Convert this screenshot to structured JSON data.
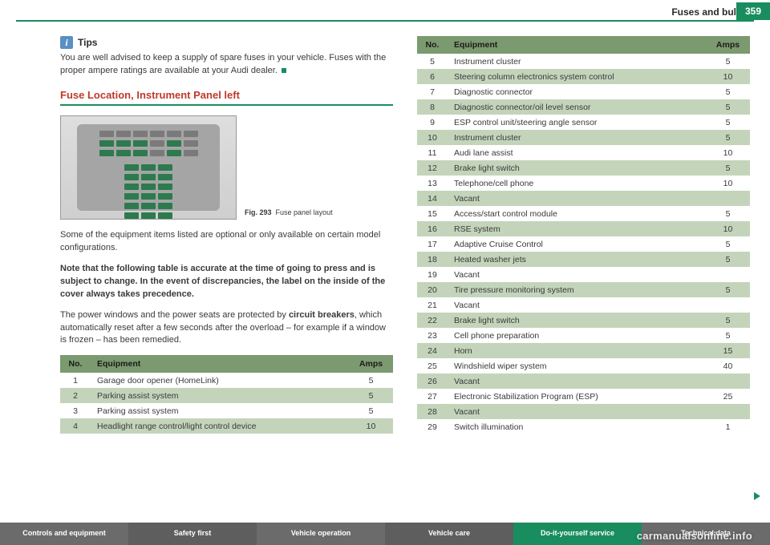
{
  "header": {
    "title": "Fuses and bulbs",
    "page_number": "359"
  },
  "tips": {
    "icon_letter": "i",
    "label": "Tips",
    "body": "You are well advised to keep a supply of spare fuses in your vehicle. Fuses with the proper ampere ratings are available at your Audi dealer."
  },
  "section_heading": "Fuse Location, Instrument Panel left",
  "figure_caption_bold": "Fig. 293",
  "figure_caption_text": "Fuse panel layout",
  "body_paragraphs": {
    "p1": "Some of the equipment items listed are optional or only available on certain model configurations.",
    "p2_bold": "Note that the following table is accurate at the time of going to press and is subject to change. In the event of discrepancies, the label on the inside of the cover always takes precedence.",
    "p3a": "The power windows and the power seats are protected by ",
    "p3b_bold": "circuit breakers",
    "p3c": ", which automatically reset after a few seconds after the overload – for example if a window is frozen – has been remedied."
  },
  "table_headers": {
    "no": "No.",
    "equipment": "Equipment",
    "amps": "Amps"
  },
  "left_table_rows": [
    {
      "no": "1",
      "equipment": "Garage door opener (HomeLink)",
      "amps": "5"
    },
    {
      "no": "2",
      "equipment": "Parking assist system",
      "amps": "5"
    },
    {
      "no": "3",
      "equipment": "Parking assist system",
      "amps": "5"
    },
    {
      "no": "4",
      "equipment": "Headlight range control/light control device",
      "amps": "10"
    }
  ],
  "right_table_rows": [
    {
      "no": "5",
      "equipment": "Instrument cluster",
      "amps": "5"
    },
    {
      "no": "6",
      "equipment": "Steering column electronics system control",
      "amps": "10"
    },
    {
      "no": "7",
      "equipment": "Diagnostic connector",
      "amps": "5"
    },
    {
      "no": "8",
      "equipment": "Diagnostic connector/oil level sensor",
      "amps": "5"
    },
    {
      "no": "9",
      "equipment": "ESP control unit/steering angle sensor",
      "amps": "5"
    },
    {
      "no": "10",
      "equipment": "Instrument cluster",
      "amps": "5"
    },
    {
      "no": "11",
      "equipment": "Audi lane assist",
      "amps": "10"
    },
    {
      "no": "12",
      "equipment": "Brake light switch",
      "amps": "5"
    },
    {
      "no": "13",
      "equipment": "Telephone/cell phone",
      "amps": "10"
    },
    {
      "no": "14",
      "equipment": "Vacant",
      "amps": ""
    },
    {
      "no": "15",
      "equipment": "Access/start control module",
      "amps": "5"
    },
    {
      "no": "16",
      "equipment": "RSE system",
      "amps": "10"
    },
    {
      "no": "17",
      "equipment": "Adaptive Cruise Control",
      "amps": "5"
    },
    {
      "no": "18",
      "equipment": "Heated washer jets",
      "amps": "5"
    },
    {
      "no": "19",
      "equipment": "Vacant",
      "amps": ""
    },
    {
      "no": "20",
      "equipment": "Tire pressure monitoring system",
      "amps": "5"
    },
    {
      "no": "21",
      "equipment": "Vacant",
      "amps": ""
    },
    {
      "no": "22",
      "equipment": "Brake light switch",
      "amps": "5"
    },
    {
      "no": "23",
      "equipment": "Cell phone preparation",
      "amps": "5"
    },
    {
      "no": "24",
      "equipment": "Horn",
      "amps": "15"
    },
    {
      "no": "25",
      "equipment": "Windshield wiper system",
      "amps": "40"
    },
    {
      "no": "26",
      "equipment": "Vacant",
      "amps": ""
    },
    {
      "no": "27",
      "equipment": "Electronic Stabilization Program (ESP)",
      "amps": "25"
    },
    {
      "no": "28",
      "equipment": "Vacant",
      "amps": ""
    },
    {
      "no": "29",
      "equipment": "Switch illumination",
      "amps": "1"
    }
  ],
  "footer_tabs": {
    "t1": "Controls and equip­ment",
    "t2": "Safety first",
    "t3": "Vehicle operation",
    "t4": "Vehicle care",
    "t5": "Do-it-yourself service",
    "t6": "Technical data"
  },
  "watermark": "carmanualsonline.info",
  "colors": {
    "accent_green": "#1a8d5f",
    "heading_red": "#c0392b",
    "table_header_bg": "#7b9a6f",
    "table_even_bg": "#c3d4bb"
  }
}
